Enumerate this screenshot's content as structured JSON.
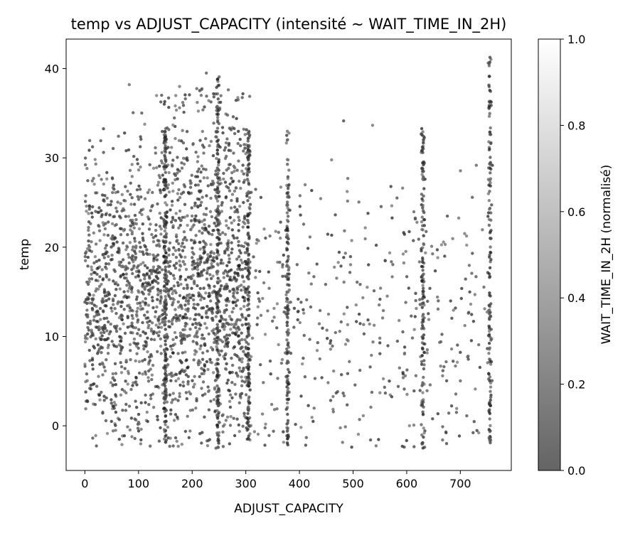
{
  "chart_data": {
    "type": "scatter",
    "title": "temp vs ADJUST_CAPACITY (intensité ~ WAIT_TIME_IN_2H)",
    "xlabel": "ADJUST_CAPACITY",
    "ylabel": "temp",
    "xlim": [
      -35,
      795
    ],
    "ylim": [
      -5,
      43.3
    ],
    "xticks": [
      0,
      100,
      200,
      300,
      400,
      500,
      600,
      700
    ],
    "yticks": [
      0,
      10,
      20,
      30,
      40
    ],
    "colorbar": {
      "label": "WAIT_TIME_IN_2H (normalisé)",
      "range": [
        0.0,
        1.0
      ],
      "ticks": [
        "0.0",
        "0.2",
        "0.4",
        "0.6",
        "0.8",
        "1.0"
      ]
    },
    "series": [
      {
        "name": "dense_columns",
        "x": [
          150,
          248,
          305,
          378,
          630,
          755
        ],
        "note": "vertical concentrations of points"
      }
    ],
    "spread": {
      "x_range": [
        0,
        760
      ],
      "y_range": [
        -2.5,
        41.3
      ]
    }
  }
}
